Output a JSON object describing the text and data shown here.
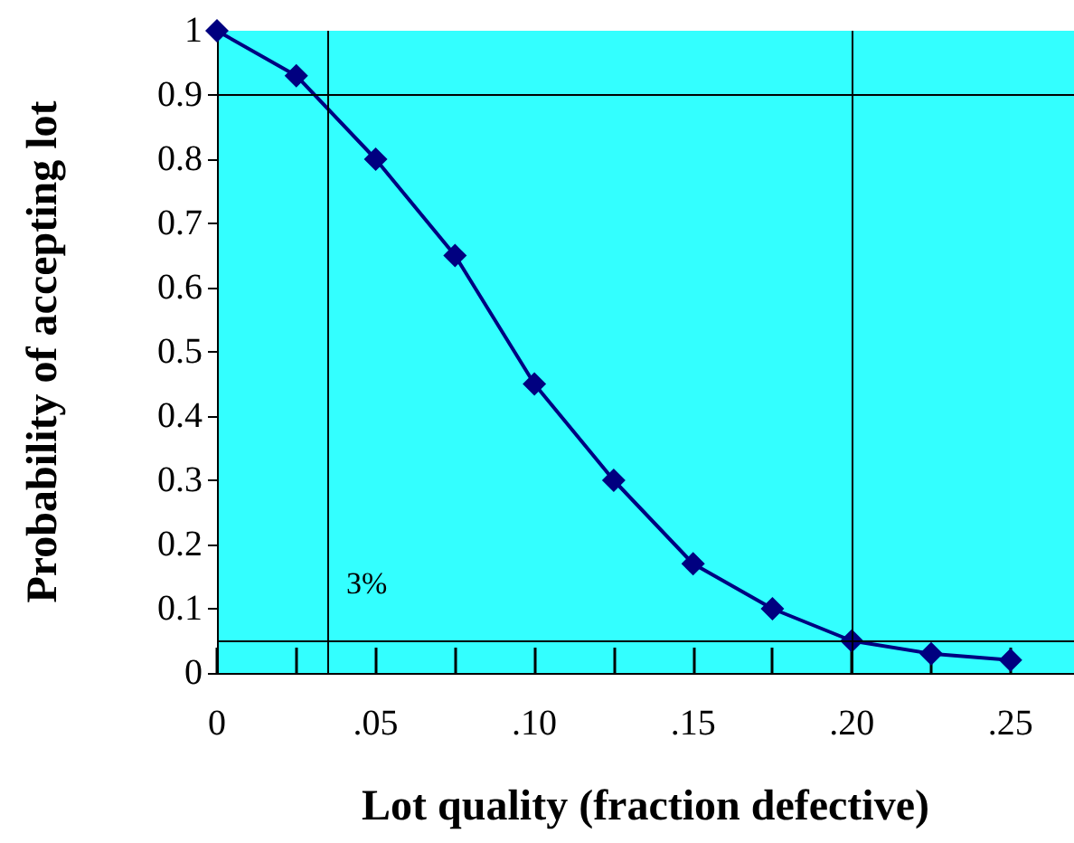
{
  "chart_data": {
    "type": "line",
    "xlabel": "Lot quality (fraction defective)",
    "ylabel": "Probability of accepting lot",
    "x": [
      0,
      0.025,
      0.05,
      0.075,
      0.1,
      0.125,
      0.15,
      0.175,
      0.2,
      0.225,
      0.25
    ],
    "series": [
      {
        "color": "#000080",
        "values": [
          1,
          0.93,
          0.8,
          0.65,
          0.45,
          0.3,
          0.17,
          0.1,
          0.05,
          0.03,
          0.02
        ]
      }
    ],
    "xlim": [
      0,
      0.27
    ],
    "xticks": [
      {
        "value": 0,
        "label": "0"
      },
      {
        "value": 0.025,
        "label": null
      },
      {
        "value": 0.05,
        "label": ".05"
      },
      {
        "value": 0.075,
        "label": null
      },
      {
        "value": 0.1,
        "label": ".10"
      },
      {
        "value": 0.125,
        "label": null
      },
      {
        "value": 0.15,
        "label": ".15"
      },
      {
        "value": 0.175,
        "label": null
      },
      {
        "value": 0.2,
        "label": ".20"
      },
      {
        "value": 0.225,
        "label": null
      },
      {
        "value": 0.25,
        "label": ".25"
      }
    ],
    "ylim": [
      0,
      1
    ],
    "yticks": [
      0,
      0.1,
      0.2,
      0.3,
      0.4,
      0.5,
      0.6,
      0.7,
      0.8,
      0.9,
      1
    ],
    "ref_lines": [
      {
        "axis": "x",
        "value": 0.035,
        "label": "3%",
        "color": "#000000"
      },
      {
        "axis": "y",
        "value": 0.9,
        "color": "#000000"
      },
      {
        "axis": "y",
        "value": 0.05,
        "color": "#000000"
      },
      {
        "axis": "x",
        "value": 0.2,
        "color": "#000000"
      }
    ],
    "grid": false,
    "marker": "diamond",
    "line_style": "solid"
  }
}
